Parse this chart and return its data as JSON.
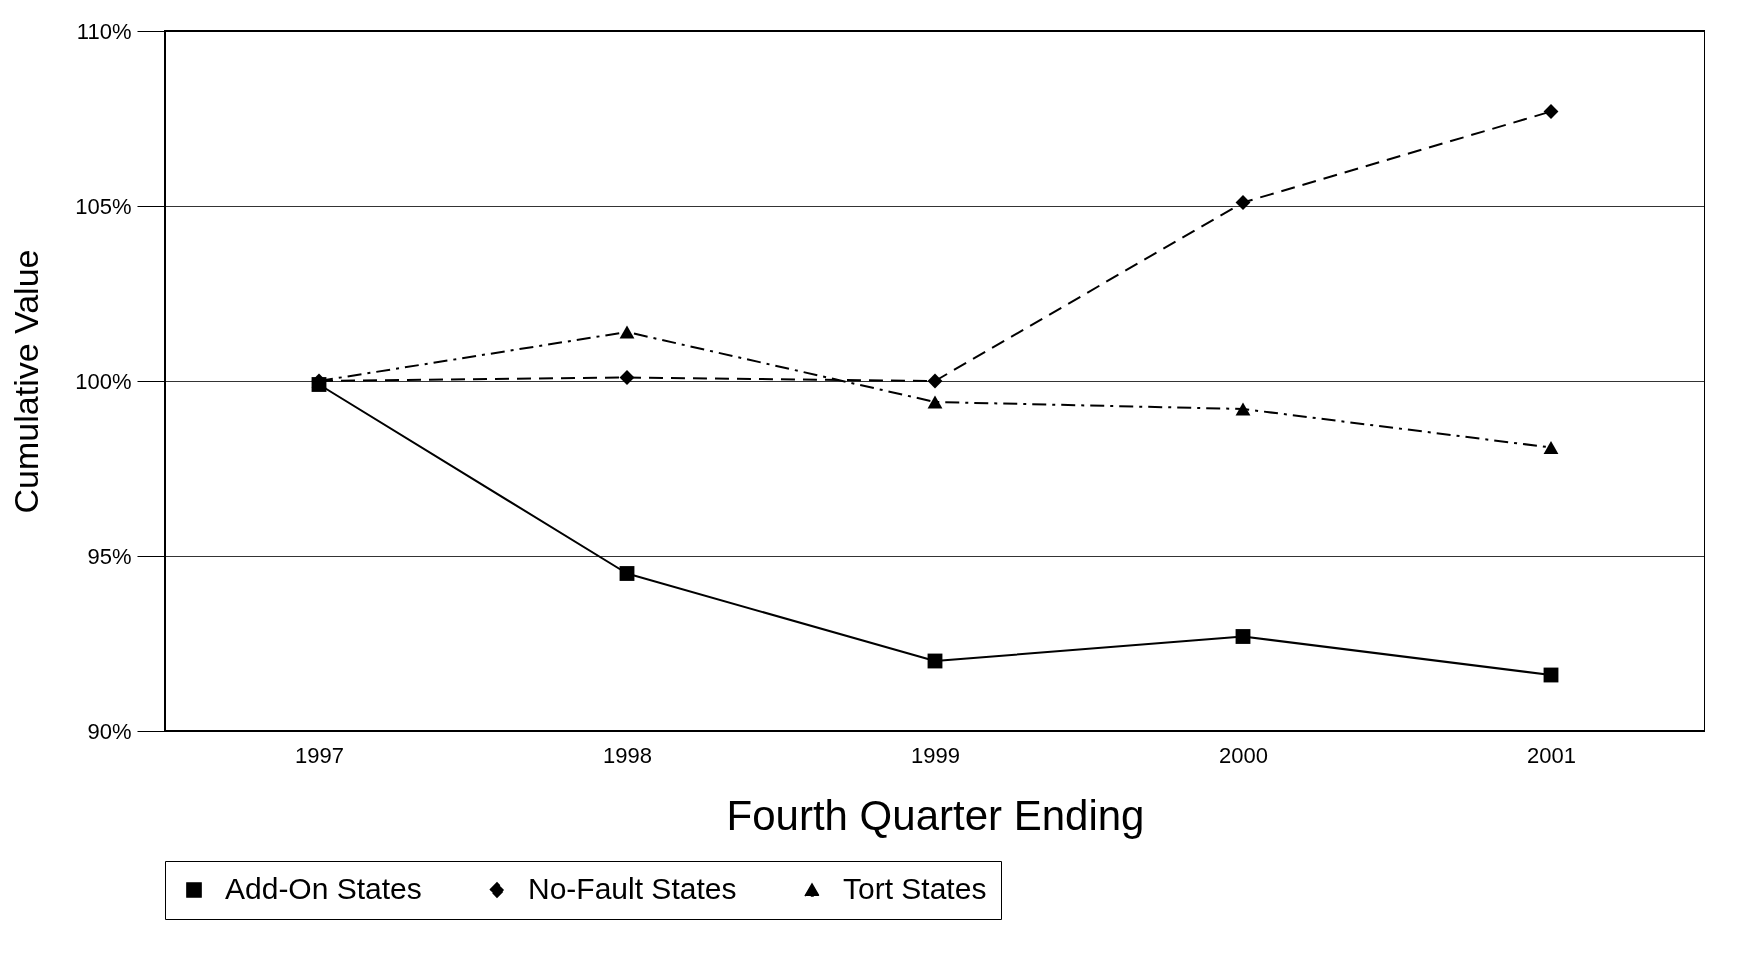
{
  "chart_data": {
    "type": "line",
    "xlabel": "Fourth Quarter Ending",
    "ylabel": "Cumulative Value",
    "categories": [
      "1997",
      "1998",
      "1999",
      "2000",
      "2001"
    ],
    "series": [
      {
        "name": "Add-On States",
        "color": "#000000",
        "marker": "square",
        "line_style": "solid",
        "values": [
          99.9,
          94.5,
          92.0,
          92.7,
          91.6
        ]
      },
      {
        "name": "No-Fault States",
        "color": "#000000",
        "marker": "diamond",
        "line_style": "dashed",
        "values": [
          100.0,
          100.1,
          100.0,
          105.1,
          107.7
        ]
      },
      {
        "name": "Tort States",
        "color": "#000000",
        "marker": "triangle",
        "line_style": "dashdot",
        "values": [
          100.0,
          101.4,
          99.4,
          99.2,
          98.1
        ]
      }
    ],
    "ylim": [
      90,
      110
    ],
    "yticks": [
      {
        "value": 90,
        "label": "90%"
      },
      {
        "value": 95,
        "label": "95%"
      },
      {
        "value": 100,
        "label": "100%"
      },
      {
        "value": 105,
        "label": "105%"
      },
      {
        "value": 110,
        "label": "110%"
      }
    ],
    "grid": "y",
    "legend": "bottom"
  }
}
